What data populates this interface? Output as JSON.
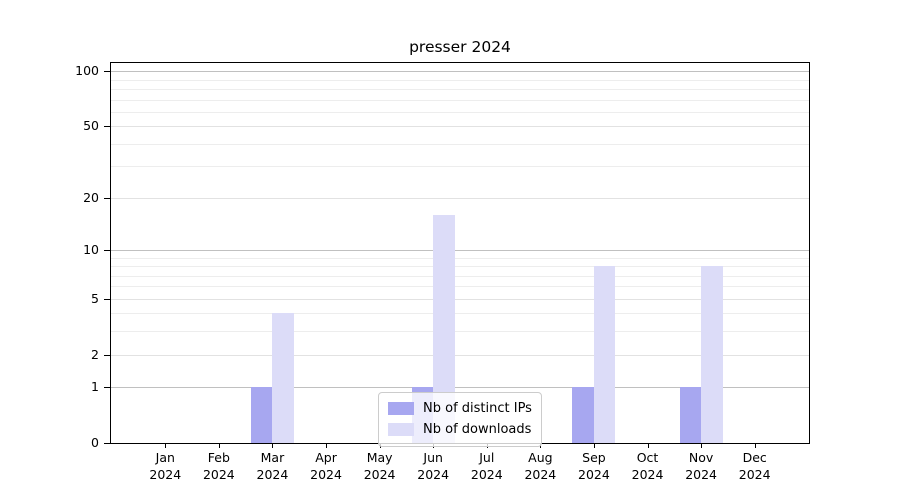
{
  "title": "presser 2024",
  "legend": {
    "items": [
      {
        "label": "Nb of distinct IPs",
        "color": "#a7a7f0"
      },
      {
        "label": "Nb of downloads",
        "color": "#dcdcf8"
      }
    ]
  },
  "chart_data": {
    "type": "bar",
    "title": "presser 2024",
    "categories": [
      "Jan 2024",
      "Feb 2024",
      "Mar 2024",
      "Apr 2024",
      "May 2024",
      "Jun 2024",
      "Jul 2024",
      "Aug 2024",
      "Sep 2024",
      "Oct 2024",
      "Nov 2024",
      "Dec 2024"
    ],
    "x_tick_line1": [
      "Jan",
      "Feb",
      "Mar",
      "Apr",
      "May",
      "Jun",
      "Jul",
      "Aug",
      "Sep",
      "Oct",
      "Nov",
      "Dec"
    ],
    "x_tick_line2": "2024",
    "series": [
      {
        "name": "Nb of distinct IPs",
        "color": "#a7a7f0",
        "values": [
          0,
          0,
          1,
          0,
          0,
          1,
          0,
          0,
          1,
          0,
          1,
          0
        ]
      },
      {
        "name": "Nb of downloads",
        "color": "#dcdcf8",
        "values": [
          0,
          0,
          4,
          0,
          0,
          16,
          0,
          0,
          8,
          0,
          8,
          0
        ]
      }
    ],
    "yscale": "log1p",
    "ylim": [
      0,
      111
    ],
    "yticks": [
      0,
      1,
      2,
      5,
      10,
      20,
      50,
      100
    ],
    "major_gridlines": [
      1,
      10,
      100
    ],
    "mid_gridlines": [
      2,
      5,
      20,
      50
    ],
    "minor_gridlines": [
      3,
      4,
      6,
      7,
      8,
      9,
      30,
      40,
      60,
      70,
      80,
      90
    ],
    "grid": true,
    "legend_position": "lower center"
  },
  "colors": {
    "grid_major": "#c0c0c0",
    "grid_mid": "#e2e2e2",
    "grid_minor": "#ededed",
    "axis": "#000000"
  }
}
